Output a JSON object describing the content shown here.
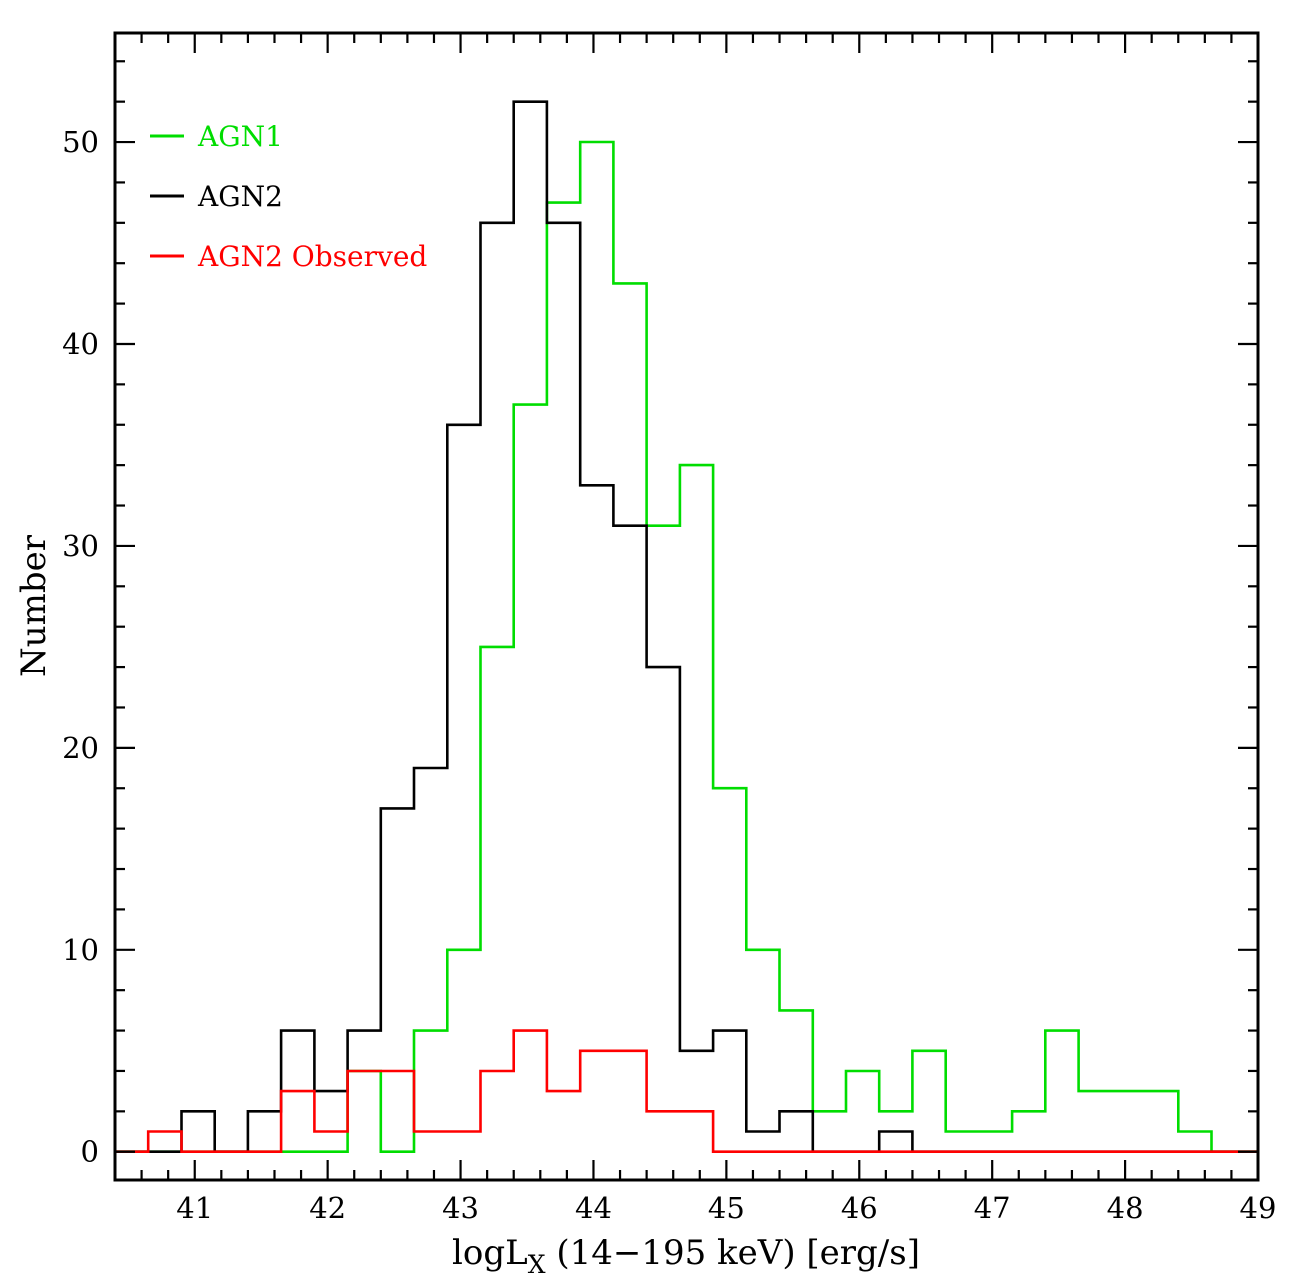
{
  "chart_data": {
    "type": "bar",
    "subtype": "step-histogram",
    "title": "",
    "xlabel_parts": {
      "main": "logL",
      "sub": "X",
      "rest": " (14−195 keV) [erg/s]"
    },
    "ylabel": "Number",
    "xlim": [
      40.4,
      49.0
    ],
    "ylim": [
      -1.4,
      55.4
    ],
    "grid": false,
    "legend_position": "top-left",
    "x_major_ticks": [
      41,
      42,
      43,
      44,
      45,
      46,
      47,
      48,
      49
    ],
    "x_tick_labels": [
      "41",
      "42",
      "43",
      "44",
      "45",
      "46",
      "47",
      "48",
      "49"
    ],
    "x_minor_step": 0.2,
    "y_major_ticks": [
      0,
      10,
      20,
      30,
      40,
      50
    ],
    "y_tick_labels": [
      "0",
      "10",
      "20",
      "30",
      "40",
      "50"
    ],
    "y_minor_step": 2,
    "bin_edges": [
      40.4,
      40.65,
      40.9,
      41.15,
      41.4,
      41.65,
      41.9,
      42.15,
      42.4,
      42.65,
      42.9,
      43.15,
      43.4,
      43.65,
      43.9,
      44.15,
      44.4,
      44.65,
      44.9,
      45.15,
      45.4,
      45.65,
      45.9,
      46.15,
      46.4,
      46.65,
      46.9,
      47.15,
      47.4,
      47.65,
      47.9,
      48.15,
      48.4,
      48.65,
      48.9,
      49.15
    ],
    "series": [
      {
        "name": "AGN1",
        "color": "#00dd00",
        "values": [
          0,
          0,
          0,
          0,
          0,
          0,
          0,
          4,
          0,
          6,
          10,
          25,
          37,
          47,
          50,
          43,
          31,
          34,
          18,
          10,
          7,
          2,
          4,
          2,
          5,
          1,
          1,
          2,
          6,
          3,
          3,
          3,
          1,
          0,
          0
        ]
      },
      {
        "name": "AGN2",
        "color": "#000000",
        "values": [
          0,
          0,
          2,
          0,
          2,
          6,
          3,
          6,
          17,
          19,
          36,
          46,
          52,
          46,
          33,
          31,
          24,
          5,
          6,
          1,
          2,
          0,
          0,
          1,
          0,
          0,
          0,
          0,
          0,
          0,
          0,
          0,
          0,
          0,
          0
        ]
      },
      {
        "name": "AGN2 Observed",
        "color": "#ff0000",
        "values": [
          0,
          1,
          0,
          0,
          0,
          3,
          1,
          4,
          4,
          1,
          1,
          4,
          6,
          3,
          5,
          5,
          2,
          2,
          0,
          0,
          0,
          0,
          0,
          0,
          0,
          0,
          0,
          0,
          0,
          0,
          0,
          0,
          0,
          0,
          0
        ]
      }
    ]
  }
}
